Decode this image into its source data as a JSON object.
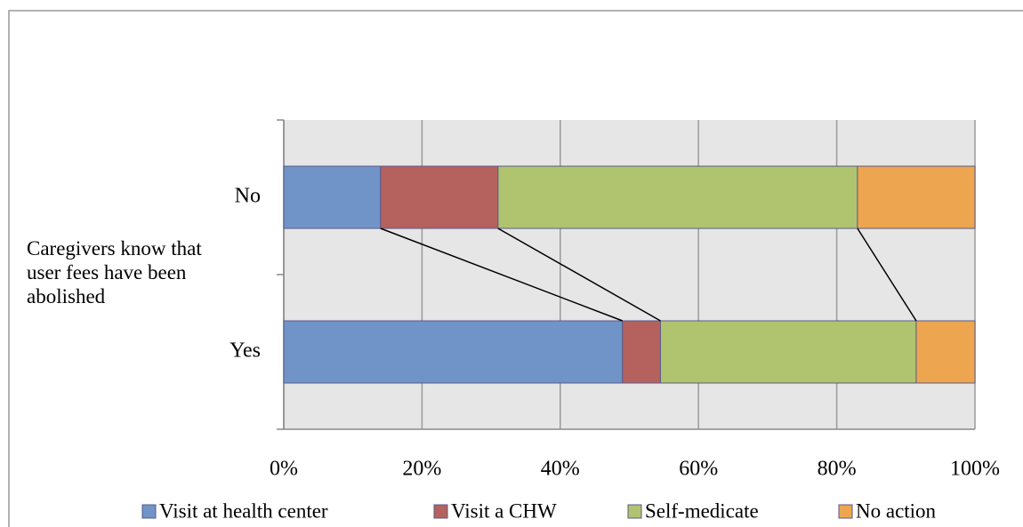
{
  "chart_data": {
    "type": "stacked_barh",
    "y_label": "Caregivers know that user fees have been abolished",
    "categories": [
      "No",
      "Yes"
    ],
    "series": [
      {
        "name": "Visit at health center",
        "color": "#7094c8",
        "values": [
          14,
          49
        ]
      },
      {
        "name": "Visit a CHW",
        "color": "#b5625e",
        "values": [
          17,
          5.5
        ]
      },
      {
        "name": "Self-medicate",
        "color": "#b0c46f",
        "values": [
          52,
          37
        ]
      },
      {
        "name": "No action",
        "color": "#eda64f",
        "values": [
          17,
          8.5
        ]
      }
    ],
    "xlim": [
      0,
      100
    ],
    "xticks": [
      {
        "value": 0,
        "label": "0%"
      },
      {
        "value": 20,
        "label": "20%"
      },
      {
        "value": 40,
        "label": "40%"
      },
      {
        "value": 60,
        "label": "60%"
      },
      {
        "value": 80,
        "label": "80%"
      },
      {
        "value": 100,
        "label": "100%"
      }
    ],
    "grid": true,
    "legend": "bottom"
  }
}
